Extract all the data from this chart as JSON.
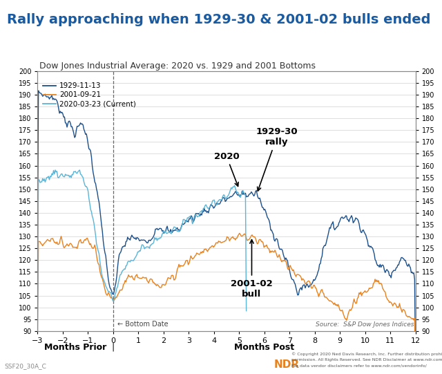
{
  "title": "Rally approaching when 1929-30 & 2001-02 bulls ended",
  "subtitle": "Dow Jones Industrial Average: 2020 vs. 1929 and 2001 Bottoms",
  "xlabel_left": "Months Prior",
  "xlabel_right": "Months Post",
  "xlim": [
    -3,
    12
  ],
  "ylim": [
    90,
    200
  ],
  "yticks": [
    90,
    95,
    100,
    105,
    110,
    115,
    120,
    125,
    130,
    135,
    140,
    145,
    150,
    155,
    160,
    165,
    170,
    175,
    180,
    185,
    190,
    195,
    200
  ],
  "xticks": [
    -3,
    -2,
    -1,
    0,
    1,
    2,
    3,
    4,
    5,
    6,
    7,
    8,
    9,
    10,
    11,
    12
  ],
  "legend_labels": [
    "1929-11-13",
    "2001-09-21",
    "2020-03-23 (Current)"
  ],
  "line_1929_color": "#1b4f8a",
  "line_2001_color": "#e8821e",
  "line_2020_color": "#5ab4d6",
  "annotation_2020": "2020",
  "annotation_1929": "1929-30\nrally",
  "annotation_2001": "2001-02\nbull",
  "bottom_date_label": "← Bottom Date",
  "source_label": "Source:  S&P Dow Jones Indices",
  "footer_left": "SSF20_30A_C",
  "title_color": "#1a5aa0",
  "title_fontsize": 14,
  "subtitle_fontsize": 9,
  "background_color": "#ffffff",
  "plot_bg_color": "#ffffff",
  "grid_color": "#d0d0d0",
  "border_color": "#888888"
}
